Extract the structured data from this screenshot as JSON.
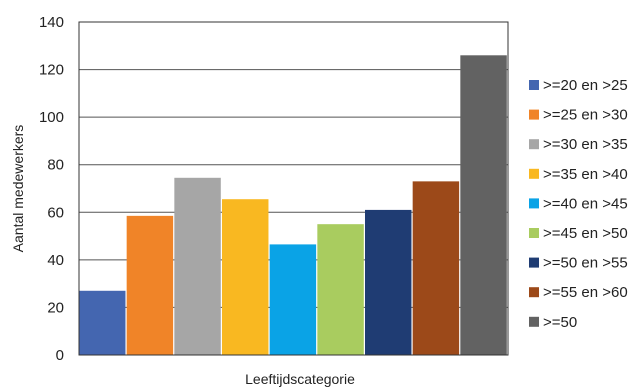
{
  "chart_data": {
    "type": "bar",
    "xlabel": "Leeftijdscategorie",
    "ylabel": "Aantal medewerkers",
    "ylim": [
      0,
      140
    ],
    "yticks": [
      0,
      20,
      40,
      60,
      80,
      100,
      120,
      140
    ],
    "grid": true,
    "legend_position": "right",
    "series": [
      {
        "name": ">=20 en >25",
        "value": 27,
        "color": "#4466b0"
      },
      {
        "name": ">=25 en >30",
        "value": 58.5,
        "color": "#f08428"
      },
      {
        "name": ">=30 en >35",
        "value": 74.5,
        "color": "#a6a6a6"
      },
      {
        "name": ">=35 en >40",
        "value": 65.5,
        "color": "#f9b821"
      },
      {
        "name": ">=40 en >45",
        "value": 46.5,
        "color": "#0aa3e6"
      },
      {
        "name": ">=45 en >50",
        "value": 55,
        "color": "#a9cc5f"
      },
      {
        "name": ">=50 en >55",
        "value": 61,
        "color": "#1f3c73"
      },
      {
        "name": ">=55 en >60",
        "value": 73,
        "color": "#9c4919"
      },
      {
        "name": ">=50",
        "value": 126,
        "color": "#626262"
      }
    ]
  }
}
